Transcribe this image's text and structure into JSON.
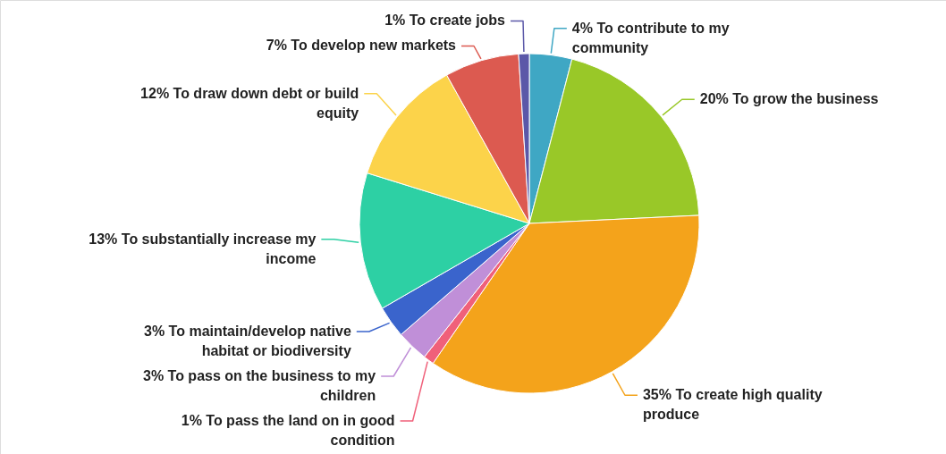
{
  "chart_data": {
    "type": "pie",
    "categories": [
      "To contribute to my community",
      "To grow the business",
      "To create high quality produce",
      "To pass the land on in good condition",
      "To pass on the business to my children",
      "To maintain/develop native habitat or biodiversity",
      "To substantially increase my income",
      "To draw down debt or build equity",
      "To develop new markets",
      "To create jobs"
    ],
    "values": [
      4,
      20,
      35,
      1,
      3,
      3,
      13,
      12,
      7,
      1
    ],
    "value_labels": [
      "4%",
      "20%",
      "35%",
      "1%",
      "3%",
      "3%",
      "13%",
      "12%",
      "7%",
      "1%"
    ],
    "colors": [
      "#3fa7c4",
      "#99c828",
      "#f4a31b",
      "#f0607a",
      "#c08fd8",
      "#3a64cc",
      "#2dd0a4",
      "#fcd34a",
      "#dc5a50",
      "#5b58a8"
    ]
  }
}
